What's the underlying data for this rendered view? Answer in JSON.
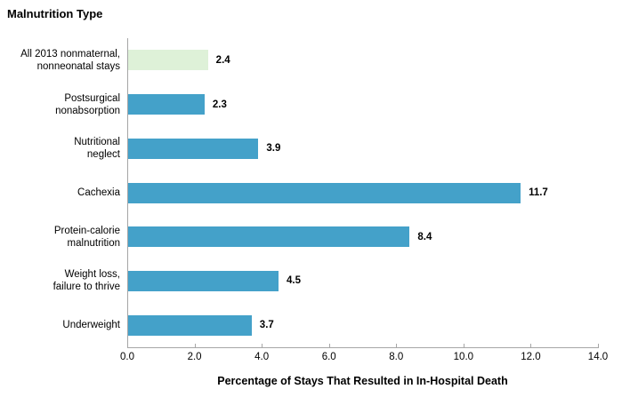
{
  "title": "Malnutrition Type",
  "chart_data": {
    "type": "bar",
    "orientation": "horizontal",
    "title": "Malnutrition Type",
    "categories": [
      "All 2013 nonmaternal,\nnonneonatal stays",
      "Postsurgical\nnonabsorption",
      "Nutritional\nneglect",
      "Cachexia",
      "Protein-calorie\nmalnutrition",
      "Weight loss,\nfailure to thrive",
      "Underweight"
    ],
    "values": [
      2.4,
      2.3,
      3.9,
      11.7,
      8.4,
      4.5,
      3.7
    ],
    "value_labels": [
      "2.4",
      "2.3",
      "3.9",
      "11.7",
      "8.4",
      "4.5",
      "3.7"
    ],
    "xlabel": "Percentage of Stays That Resulted in In-Hospital Death",
    "ylabel": "Malnutrition Type",
    "xlim": [
      0,
      14
    ],
    "x_ticks": [
      "0.0",
      "2.0",
      "4.0",
      "6.0",
      "8.0",
      "10.0",
      "12.0",
      "14.0"
    ],
    "grid": false,
    "legend": "none",
    "colors": {
      "default_bar": "#44a1c9",
      "highlight_bar": "#def1d8",
      "highlight_index": 0,
      "axis": "#a6a6a6",
      "text": "#000000"
    }
  }
}
